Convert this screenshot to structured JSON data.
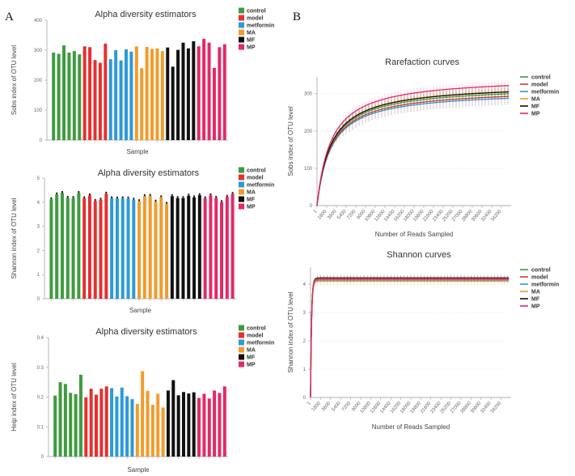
{
  "panels": {
    "a": "A",
    "b": "B"
  },
  "groups": [
    {
      "name": "control",
      "color": "#3f9b3f"
    },
    {
      "name": "model",
      "color": "#e5302f"
    },
    {
      "name": "metformin",
      "color": "#2b9ad8"
    },
    {
      "name": "MA",
      "color": "#f29b2c"
    },
    {
      "name": "MF",
      "color": "#111111"
    },
    {
      "name": "MP",
      "color": "#e32a66"
    }
  ],
  "chart_data": [
    {
      "id": "sobs-bar",
      "type": "bar",
      "title": "Alpha diversity estimators",
      "xlabel": "Sample",
      "ylabel": "Sobs index of OTU level",
      "ylim": [
        0,
        400
      ],
      "yticks": [
        "0",
        "100",
        "200",
        "300",
        "400"
      ],
      "legend_position": "top-right",
      "series": [
        {
          "name": "control",
          "values": [
            292,
            288,
            316,
            292,
            297,
            286
          ]
        },
        {
          "name": "model",
          "values": [
            313,
            310,
            267,
            258,
            322
          ]
        },
        {
          "name": "metformin",
          "values": [
            270,
            300,
            266,
            303,
            295
          ]
        },
        {
          "name": "MA",
          "values": [
            313,
            240,
            311,
            304,
            306,
            297
          ]
        },
        {
          "name": "MF",
          "values": [
            309,
            245,
            301,
            325,
            306,
            330
          ]
        },
        {
          "name": "MP",
          "values": [
            313,
            338,
            325,
            241,
            310,
            320
          ]
        }
      ]
    },
    {
      "id": "shannon-bar",
      "type": "bar",
      "title": "Alpha diversity estimators",
      "xlabel": "Sample",
      "ylabel": "Shannon index of OTU level",
      "ylim": [
        0,
        5
      ],
      "yticks": [
        "0",
        "1",
        "2",
        "3",
        "4",
        "5"
      ],
      "legend_position": "top-right",
      "series": [
        {
          "name": "control",
          "values": [
            4.12,
            4.32,
            4.38,
            4.18,
            4.17,
            4.38
          ]
        },
        {
          "name": "model",
          "values": [
            4.16,
            4.28,
            4.05,
            4.1,
            4.35
          ]
        },
        {
          "name": "metformin",
          "values": [
            4.16,
            4.15,
            4.16,
            4.15,
            4.1
          ]
        },
        {
          "name": "MA",
          "values": [
            4.04,
            4.25,
            4.26,
            4.02,
            4.2,
            3.93
          ]
        },
        {
          "name": "MF",
          "values": [
            4.25,
            4.17,
            4.17,
            4.27,
            4.2,
            4.29
          ]
        },
        {
          "name": "MP",
          "values": [
            4.16,
            4.28,
            4.18,
            4.0,
            4.22,
            4.34
          ]
        }
      ]
    },
    {
      "id": "heip-bar",
      "type": "bar",
      "title": "Alpha diversity estimators",
      "xlabel": "Sample",
      "ylabel": "Heip index of OTU level",
      "ylim": [
        0,
        0.4
      ],
      "yticks": [
        "0",
        "0.1",
        "0.2",
        "0.3",
        "0.4"
      ],
      "legend_position": "top-right",
      "series": [
        {
          "name": "control",
          "values": [
            0.205,
            0.25,
            0.244,
            0.214,
            0.21,
            0.275
          ]
        },
        {
          "name": "model",
          "values": [
            0.199,
            0.228,
            0.208,
            0.228,
            0.236
          ]
        },
        {
          "name": "metformin",
          "values": [
            0.23,
            0.202,
            0.232,
            0.203,
            0.193
          ]
        },
        {
          "name": "MA",
          "values": [
            0.177,
            0.287,
            0.221,
            0.174,
            0.211,
            0.165
          ]
        },
        {
          "name": "MF",
          "values": [
            0.222,
            0.257,
            0.206,
            0.217,
            0.212,
            0.216
          ]
        },
        {
          "name": "MP",
          "values": [
            0.197,
            0.211,
            0.195,
            0.222,
            0.214,
            0.236
          ]
        }
      ]
    },
    {
      "id": "rarefaction",
      "type": "line",
      "title": "Rarefaction curves",
      "xlabel": "Number of Reads Sampled",
      "ylabel": "Sobs index of OTU level",
      "xlim": [
        1,
        36000
      ],
      "ylim": [
        0,
        345
      ],
      "yticks": [
        "0",
        "100",
        "200",
        "300"
      ],
      "xticks": [
        "1",
        "1800",
        "3600",
        "5400",
        "7200",
        "9000",
        "10800",
        "12600",
        "14400",
        "16200",
        "18000",
        "19800",
        "21600",
        "23400",
        "25200",
        "27000",
        "28800",
        "30600",
        "32400",
        "34200"
      ],
      "legend_position": "top-right",
      "series": [
        {
          "name": "control",
          "plateau": 300,
          "err": 12
        },
        {
          "name": "model",
          "plateau": 293,
          "err": 22
        },
        {
          "name": "metformin",
          "plateau": 288,
          "err": 16
        },
        {
          "name": "MA",
          "plateau": 306,
          "err": 12
        },
        {
          "name": "MF",
          "plateau": 305,
          "err": 14
        },
        {
          "name": "MP",
          "plateau": 322,
          "err": 12
        }
      ]
    },
    {
      "id": "shannon-curves",
      "type": "line",
      "title": "Shannon curves",
      "xlabel": "Number of Reads Sampled",
      "ylabel": "Shannon index of OTU level",
      "xlim": [
        1,
        36000
      ],
      "ylim": [
        0,
        4.6
      ],
      "yticks": [
        "0",
        "1",
        "2",
        "3",
        "4"
      ],
      "xticks": [
        "1",
        "1800",
        "3600",
        "5400",
        "7200",
        "9000",
        "10800",
        "12600",
        "14400",
        "16200",
        "18000",
        "19800",
        "21600",
        "23400",
        "25200",
        "27000",
        "28800",
        "30600",
        "32400",
        "34200"
      ],
      "legend_position": "top-right",
      "series": [
        {
          "name": "control",
          "plateau": 4.22,
          "err": 0.12
        },
        {
          "name": "model",
          "plateau": 4.18,
          "err": 0.1
        },
        {
          "name": "metformin",
          "plateau": 4.14,
          "err": 0.08
        },
        {
          "name": "MA",
          "plateau": 4.1,
          "err": 0.14
        },
        {
          "name": "MF",
          "plateau": 4.22,
          "err": 0.06
        },
        {
          "name": "MP",
          "plateau": 4.2,
          "err": 0.08
        }
      ]
    }
  ]
}
